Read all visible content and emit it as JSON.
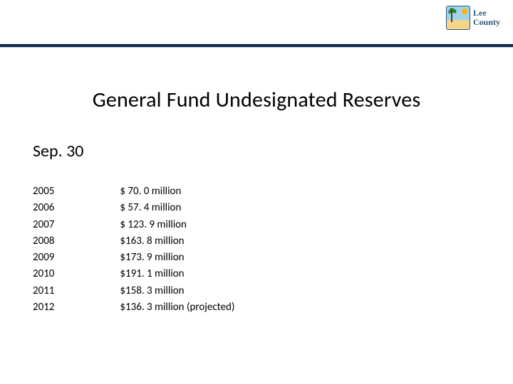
{
  "logo": {
    "line1": "Lee",
    "line2": "County"
  },
  "title": "General Fund Undesignated Reserves",
  "subtitle": "Sep. 30",
  "rows": [
    {
      "year": "2005",
      "value": "$   70. 0 million"
    },
    {
      "year": "2006",
      "value": "$   57. 4 million"
    },
    {
      "year": "2007",
      "value": "$ 123. 9 million"
    },
    {
      "year": "2008",
      "value": "$163. 8 million"
    },
    {
      "year": "2009",
      "value": "$173. 9 million"
    },
    {
      "year": "2010",
      "value": "$191. 1 million"
    },
    {
      "year": "2011",
      "value": "$158. 3 million"
    },
    {
      "year": "2012",
      "value": "$136. 3 million (projected)"
    }
  ],
  "colors": {
    "rule": "#0d2a4a",
    "logo_text": "#2d5a7a"
  }
}
